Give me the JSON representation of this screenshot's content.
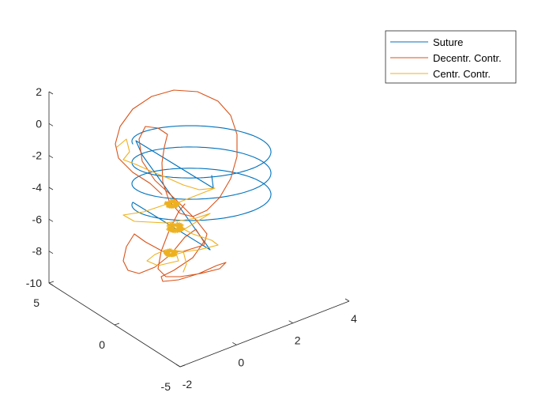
{
  "chart_data": {
    "type": "line3d",
    "axes": {
      "x": {
        "range": [
          -2,
          4
        ],
        "ticks": [
          -2,
          0,
          2,
          4
        ]
      },
      "y": {
        "range": [
          -5,
          5
        ],
        "ticks": [
          -5,
          0,
          5
        ]
      },
      "z": {
        "range": [
          -10,
          2
        ],
        "ticks": [
          -10,
          -8,
          -6,
          -4,
          -2,
          0,
          2
        ]
      }
    },
    "grid": false,
    "legend": {
      "placement": "top-right"
    },
    "series": [
      {
        "name": "Suture",
        "color": "#0072BD"
      },
      {
        "name": "Decentr. Contr.",
        "color": "#D95319"
      },
      {
        "name": "Centr. Contr.",
        "color": "#EDB120"
      }
    ]
  }
}
